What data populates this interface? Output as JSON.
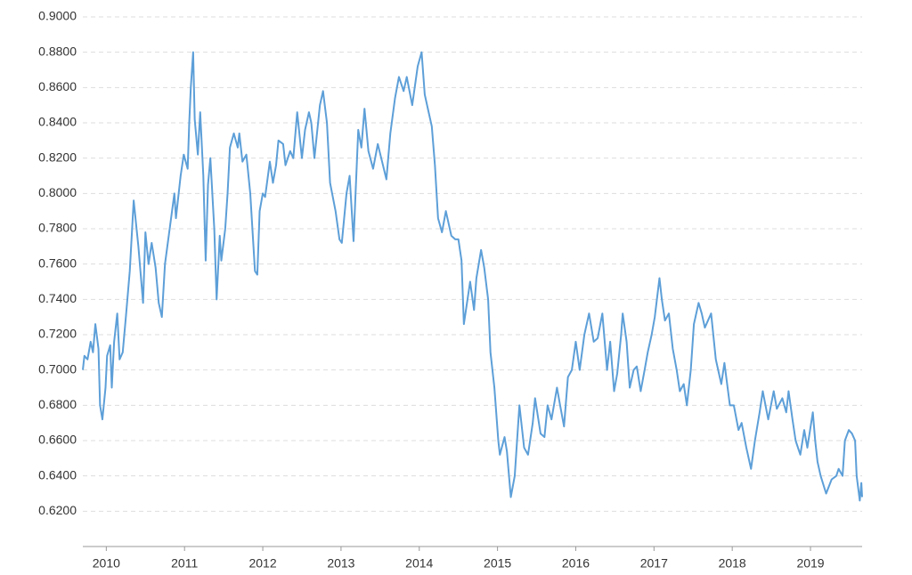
{
  "chart_data": {
    "type": "line",
    "color": "#5d9fd8",
    "grid": true,
    "xlim": [
      2009.7,
      2019.66
    ],
    "ylim": [
      0.6,
      0.9
    ],
    "xticks": [
      2010,
      2011,
      2012,
      2013,
      2014,
      2015,
      2016,
      2017,
      2018,
      2019
    ],
    "yticks": [
      {
        "value": 0.62,
        "label": "0.6200"
      },
      {
        "value": 0.64,
        "label": "0.6400"
      },
      {
        "value": 0.66,
        "label": "0.6600"
      },
      {
        "value": 0.68,
        "label": "0.6800"
      },
      {
        "value": 0.7,
        "label": "0.7000"
      },
      {
        "value": 0.72,
        "label": "0.7200"
      },
      {
        "value": 0.74,
        "label": "0.7400"
      },
      {
        "value": 0.76,
        "label": "0.7600"
      },
      {
        "value": 0.78,
        "label": "0.7800"
      },
      {
        "value": 0.8,
        "label": "0.8000"
      },
      {
        "value": 0.82,
        "label": "0.8200"
      },
      {
        "value": 0.84,
        "label": "0.8400"
      },
      {
        "value": 0.86,
        "label": "0.8600"
      },
      {
        "value": 0.88,
        "label": "0.8800"
      },
      {
        "value": 0.9,
        "label": "0.9000"
      }
    ],
    "x": [
      2009.7,
      2009.72,
      2009.76,
      2009.8,
      2009.83,
      2009.86,
      2009.9,
      2009.92,
      2009.95,
      2009.99,
      2010.01,
      2010.05,
      2010.07,
      2010.1,
      2010.14,
      2010.17,
      2010.21,
      2010.25,
      2010.3,
      2010.35,
      2010.41,
      2010.47,
      2010.5,
      2010.54,
      2010.58,
      2010.63,
      2010.67,
      2010.71,
      2010.75,
      2010.81,
      2010.87,
      2010.89,
      2010.95,
      2010.99,
      2011.04,
      2011.06,
      2011.08,
      2011.11,
      2011.13,
      2011.17,
      2011.2,
      2011.24,
      2011.27,
      2011.3,
      2011.33,
      2011.38,
      2011.41,
      2011.45,
      2011.47,
      2011.52,
      2011.55,
      2011.58,
      2011.63,
      2011.68,
      2011.7,
      2011.74,
      2011.79,
      2011.84,
      2011.9,
      2011.93,
      2011.96,
      2012.0,
      2012.03,
      2012.09,
      2012.13,
      2012.17,
      2012.2,
      2012.26,
      2012.29,
      2012.35,
      2012.39,
      2012.44,
      2012.5,
      2012.54,
      2012.59,
      2012.62,
      2012.66,
      2012.73,
      2012.77,
      2012.82,
      2012.86,
      2012.93,
      2012.98,
      2013.01,
      2013.07,
      2013.11,
      2013.16,
      2013.22,
      2013.26,
      2013.3,
      2013.35,
      2013.41,
      2013.47,
      2013.58,
      2013.63,
      2013.69,
      2013.74,
      2013.8,
      2013.84,
      2013.91,
      2013.98,
      2014.03,
      2014.07,
      2014.12,
      2014.16,
      2014.2,
      2014.24,
      2014.29,
      2014.34,
      2014.41,
      2014.46,
      2014.5,
      2014.54,
      2014.57,
      2014.65,
      2014.7,
      2014.73,
      2014.79,
      2014.83,
      2014.88,
      2014.91,
      2014.96,
      2015.01,
      2015.03,
      2015.09,
      2015.12,
      2015.17,
      2015.22,
      2015.28,
      2015.34,
      2015.39,
      2015.45,
      2015.48,
      2015.55,
      2015.6,
      2015.64,
      2015.69,
      2015.76,
      2015.8,
      2015.85,
      2015.9,
      2015.95,
      2016.0,
      2016.05,
      2016.11,
      2016.17,
      2016.23,
      2016.28,
      2016.34,
      2016.4,
      2016.44,
      2016.49,
      2016.53,
      2016.58,
      2016.6,
      2016.65,
      2016.69,
      2016.74,
      2016.78,
      2016.83,
      2016.88,
      2016.92,
      2016.97,
      2017.01,
      2017.07,
      2017.1,
      2017.14,
      2017.19,
      2017.24,
      2017.29,
      2017.33,
      2017.38,
      2017.42,
      2017.47,
      2017.51,
      2017.57,
      2017.61,
      2017.65,
      2017.73,
      2017.79,
      2017.86,
      2017.9,
      2017.97,
      2018.02,
      2018.08,
      2018.12,
      2018.18,
      2018.24,
      2018.29,
      2018.35,
      2018.39,
      2018.46,
      2018.53,
      2018.57,
      2018.64,
      2018.69,
      2018.72,
      2018.77,
      2018.81,
      2018.87,
      2018.92,
      2018.96,
      2019.03,
      2019.06,
      2019.09,
      2019.13,
      2019.2,
      2019.27,
      2019.33,
      2019.36,
      2019.41,
      2019.44,
      2019.49,
      2019.53,
      2019.57,
      2019.59,
      2019.63,
      2019.65,
      2019.66
    ],
    "values": [
      0.7,
      0.708,
      0.706,
      0.716,
      0.71,
      0.726,
      0.712,
      0.68,
      0.672,
      0.69,
      0.708,
      0.714,
      0.69,
      0.716,
      0.732,
      0.706,
      0.71,
      0.73,
      0.756,
      0.796,
      0.77,
      0.738,
      0.778,
      0.76,
      0.772,
      0.758,
      0.738,
      0.73,
      0.76,
      0.78,
      0.8,
      0.786,
      0.81,
      0.822,
      0.814,
      0.84,
      0.86,
      0.88,
      0.842,
      0.822,
      0.846,
      0.81,
      0.762,
      0.805,
      0.82,
      0.78,
      0.74,
      0.776,
      0.762,
      0.78,
      0.8,
      0.826,
      0.834,
      0.826,
      0.834,
      0.818,
      0.822,
      0.8,
      0.756,
      0.754,
      0.79,
      0.8,
      0.798,
      0.818,
      0.806,
      0.816,
      0.83,
      0.828,
      0.816,
      0.824,
      0.82,
      0.846,
      0.82,
      0.836,
      0.846,
      0.84,
      0.82,
      0.85,
      0.858,
      0.84,
      0.806,
      0.79,
      0.774,
      0.772,
      0.8,
      0.81,
      0.773,
      0.836,
      0.826,
      0.848,
      0.824,
      0.814,
      0.828,
      0.808,
      0.834,
      0.854,
      0.866,
      0.858,
      0.866,
      0.85,
      0.872,
      0.88,
      0.856,
      0.846,
      0.838,
      0.816,
      0.786,
      0.778,
      0.79,
      0.776,
      0.774,
      0.774,
      0.762,
      0.726,
      0.75,
      0.734,
      0.752,
      0.768,
      0.758,
      0.74,
      0.71,
      0.69,
      0.66,
      0.652,
      0.662,
      0.654,
      0.628,
      0.64,
      0.68,
      0.656,
      0.652,
      0.67,
      0.684,
      0.664,
      0.662,
      0.68,
      0.672,
      0.69,
      0.68,
      0.668,
      0.696,
      0.7,
      0.716,
      0.7,
      0.72,
      0.732,
      0.716,
      0.718,
      0.732,
      0.7,
      0.716,
      0.688,
      0.698,
      0.72,
      0.732,
      0.716,
      0.69,
      0.7,
      0.702,
      0.688,
      0.7,
      0.71,
      0.72,
      0.73,
      0.752,
      0.74,
      0.728,
      0.732,
      0.712,
      0.7,
      0.688,
      0.692,
      0.68,
      0.7,
      0.726,
      0.738,
      0.732,
      0.724,
      0.732,
      0.706,
      0.692,
      0.704,
      0.68,
      0.68,
      0.666,
      0.67,
      0.656,
      0.644,
      0.66,
      0.676,
      0.688,
      0.672,
      0.688,
      0.678,
      0.684,
      0.676,
      0.688,
      0.672,
      0.66,
      0.652,
      0.666,
      0.656,
      0.676,
      0.66,
      0.648,
      0.64,
      0.63,
      0.638,
      0.64,
      0.644,
      0.64,
      0.66,
      0.666,
      0.664,
      0.66,
      0.64,
      0.626,
      0.636,
      0.628
    ]
  }
}
